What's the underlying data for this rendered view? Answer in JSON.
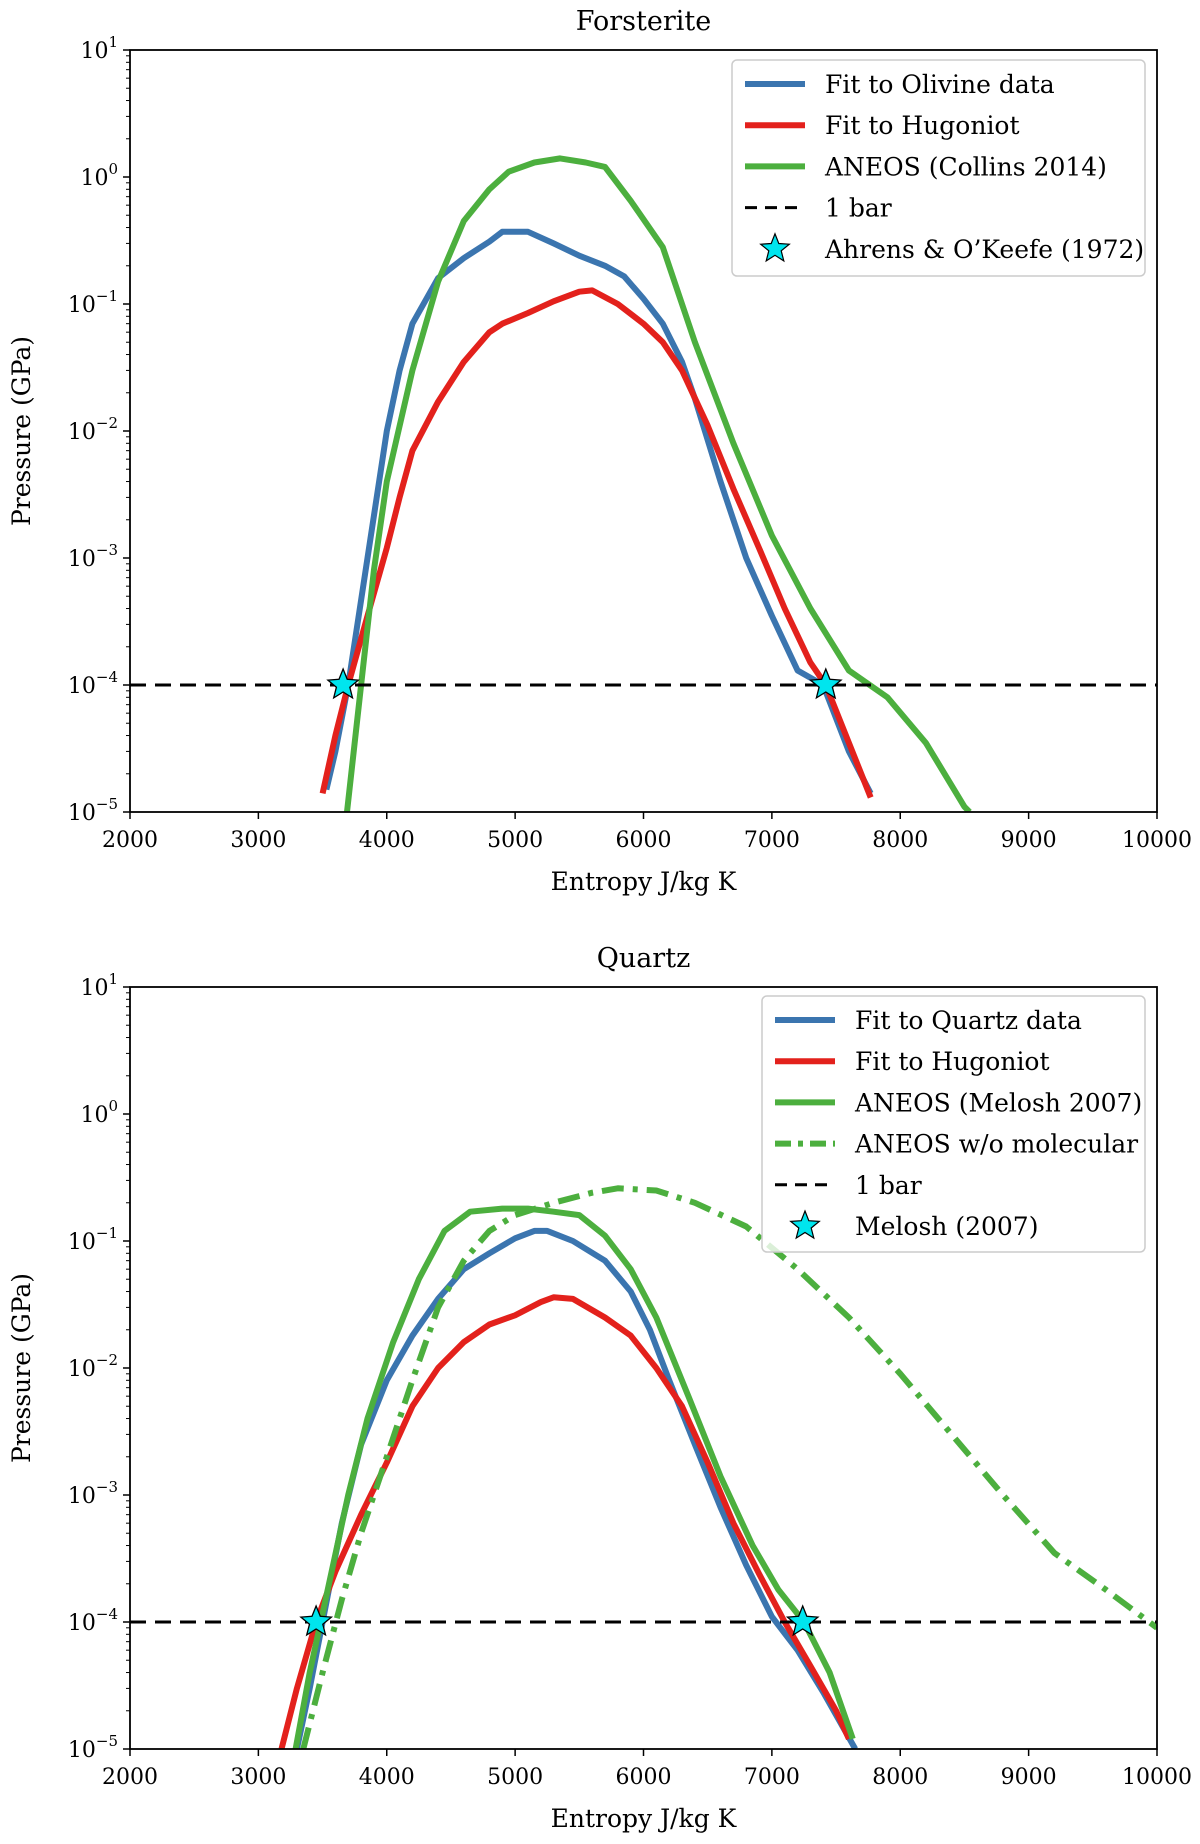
{
  "chart_data": [
    {
      "type": "line",
      "title": "Forsterite",
      "xlabel": "Entropy J/kg K",
      "ylabel": "Pressure (GPa)",
      "xlim": [
        2000,
        10000
      ],
      "ylim": [
        1e-05,
        10
      ],
      "yscale": "log",
      "x_ticks": [
        2000,
        3000,
        4000,
        5000,
        6000,
        7000,
        8000,
        9000,
        10000
      ],
      "y_ticks": [
        {
          "base": "10",
          "exp": "1",
          "value": 10
        },
        {
          "base": "10",
          "exp": "0",
          "value": 1
        },
        {
          "base": "10",
          "exp": "−1",
          "value": 0.1
        },
        {
          "base": "10",
          "exp": "−2",
          "value": 0.01
        },
        {
          "base": "10",
          "exp": "−3",
          "value": 0.001
        },
        {
          "base": "10",
          "exp": "−4",
          "value": 0.0001
        },
        {
          "base": "10",
          "exp": "−5",
          "value": 1e-05
        }
      ],
      "legend_position": "top-right",
      "series": [
        {
          "name": "Fit to Olivine data",
          "color": "#3b75af",
          "style": "solid",
          "x": [
            3530,
            3600,
            3700,
            3850,
            4000,
            4100,
            4200,
            4400,
            4600,
            4800,
            4900,
            5100,
            5300,
            5500,
            5700,
            5850,
            6000,
            6150,
            6300,
            6400,
            6600,
            6800,
            7000,
            7200,
            7400,
            7600,
            7770
          ],
          "y": [
            1.5e-05,
            3e-05,
            0.0001,
            0.001,
            0.01,
            0.03,
            0.07,
            0.16,
            0.23,
            0.31,
            0.37,
            0.37,
            0.3,
            0.24,
            0.2,
            0.165,
            0.11,
            0.07,
            0.035,
            0.018,
            0.004,
            0.001,
            0.00035,
            0.00013,
            0.0001,
            3e-05,
            1.4e-05
          ]
        },
        {
          "name": "Fit to Hugoniot",
          "color": "#e3211c",
          "style": "solid",
          "x": [
            3500,
            3600,
            3700,
            3850,
            4000,
            4100,
            4200,
            4400,
            4600,
            4800,
            4900,
            5100,
            5300,
            5500,
            5600,
            5800,
            6000,
            6150,
            6300,
            6500,
            6700,
            6900,
            7100,
            7300,
            7420,
            7600,
            7770
          ],
          "y": [
            1.4e-05,
            4e-05,
            0.0001,
            0.00035,
            0.0012,
            0.003,
            0.007,
            0.017,
            0.035,
            0.06,
            0.07,
            0.085,
            0.105,
            0.125,
            0.128,
            0.1,
            0.07,
            0.05,
            0.03,
            0.011,
            0.0035,
            0.0012,
            0.0004,
            0.00015,
            0.0001,
            3.5e-05,
            1.3e-05
          ]
        },
        {
          "name": "ANEOS (Collins 2014)",
          "color": "#4caf3e",
          "style": "solid",
          "x": [
            3690,
            3800,
            3900,
            4000,
            4200,
            4400,
            4600,
            4800,
            4950,
            5150,
            5350,
            5550,
            5700,
            5900,
            6150,
            6400,
            6700,
            7000,
            7300,
            7600,
            7900,
            8200,
            8500,
            8540
          ],
          "y": [
            1e-05,
            0.0001,
            0.0008,
            0.004,
            0.03,
            0.15,
            0.45,
            0.8,
            1.1,
            1.3,
            1.4,
            1.3,
            1.2,
            0.65,
            0.28,
            0.05,
            0.008,
            0.0015,
            0.0004,
            0.00013,
            8e-05,
            3.5e-05,
            1.1e-05,
            1e-05
          ]
        }
      ],
      "hline": {
        "name": "1 bar",
        "y": 0.0001,
        "color": "#000000",
        "style": "dashed"
      },
      "markers": {
        "name": "Ahrens & O’Keefe (1972)",
        "color": "#00e5ee",
        "x": [
          3660,
          7420
        ],
        "y": [
          0.0001,
          0.0001
        ]
      }
    },
    {
      "type": "line",
      "title": "Quartz",
      "xlabel": "Entropy J/kg K",
      "ylabel": "Pressure (GPa)",
      "xlim": [
        2000,
        10000
      ],
      "ylim": [
        1e-05,
        10
      ],
      "yscale": "log",
      "x_ticks": [
        2000,
        3000,
        4000,
        5000,
        6000,
        7000,
        8000,
        9000,
        10000
      ],
      "y_ticks": [
        {
          "base": "10",
          "exp": "1",
          "value": 10
        },
        {
          "base": "10",
          "exp": "0",
          "value": 1
        },
        {
          "base": "10",
          "exp": "−1",
          "value": 0.1
        },
        {
          "base": "10",
          "exp": "−2",
          "value": 0.01
        },
        {
          "base": "10",
          "exp": "−3",
          "value": 0.001
        },
        {
          "base": "10",
          "exp": "−4",
          "value": 0.0001
        },
        {
          "base": "10",
          "exp": "−5",
          "value": 1e-05
        }
      ],
      "legend_position": "top-right",
      "series": [
        {
          "name": "Fit to Quartz data",
          "color": "#3b75af",
          "style": "solid",
          "x": [
            3300,
            3400,
            3500,
            3650,
            3800,
            4000,
            4200,
            4400,
            4600,
            4800,
            5000,
            5150,
            5250,
            5450,
            5700,
            5900,
            6050,
            6200,
            6400,
            6600,
            6800,
            7000,
            7200,
            7400,
            7650
          ],
          "y": [
            1e-05,
            3e-05,
            0.0001,
            0.0006,
            0.0025,
            0.008,
            0.018,
            0.035,
            0.06,
            0.08,
            0.105,
            0.12,
            0.12,
            0.1,
            0.07,
            0.04,
            0.02,
            0.008,
            0.0025,
            0.0008,
            0.00028,
            0.00011,
            6e-05,
            2.8e-05,
            1e-05
          ]
        },
        {
          "name": "Fit to Hugoniot",
          "color": "#e3211c",
          "style": "solid",
          "x": [
            3180,
            3300,
            3450,
            3600,
            3800,
            4000,
            4200,
            4400,
            4600,
            4800,
            5000,
            5200,
            5300,
            5450,
            5700,
            5900,
            6100,
            6300,
            6500,
            6700,
            6900,
            7100,
            7300,
            7500,
            7600
          ],
          "y": [
            1e-05,
            3e-05,
            0.0001,
            0.00025,
            0.0007,
            0.0018,
            0.005,
            0.01,
            0.016,
            0.022,
            0.026,
            0.033,
            0.036,
            0.035,
            0.025,
            0.018,
            0.01,
            0.005,
            0.0018,
            0.0006,
            0.00024,
            0.0001,
            4.5e-05,
            2e-05,
            1.2e-05
          ]
        },
        {
          "name": "ANEOS (Melosh 2007)",
          "color": "#4caf3e",
          "style": "solid",
          "x": [
            3290,
            3400,
            3550,
            3700,
            3850,
            4050,
            4250,
            4450,
            4650,
            4900,
            5100,
            5300,
            5500,
            5700,
            5900,
            6100,
            6350,
            6600,
            6850,
            7050,
            7250,
            7450,
            7630
          ],
          "y": [
            1e-05,
            4e-05,
            0.0002,
            0.001,
            0.004,
            0.016,
            0.05,
            0.12,
            0.17,
            0.18,
            0.18,
            0.17,
            0.16,
            0.11,
            0.06,
            0.025,
            0.006,
            0.0014,
            0.0004,
            0.00018,
            0.0001,
            4e-05,
            1.2e-05
          ]
        },
        {
          "name": "ANEOS w/o molecular",
          "color": "#4caf3e",
          "style": "dashdot",
          "x": [
            3350,
            3500,
            3650,
            3800,
            4000,
            4200,
            4400,
            4600,
            4800,
            5000,
            5300,
            5600,
            5800,
            6100,
            6400,
            6800,
            7200,
            7600,
            8000,
            8400,
            8800,
            9200,
            9600,
            10000
          ],
          "y": [
            1e-05,
            4e-05,
            0.00015,
            0.0005,
            0.002,
            0.008,
            0.03,
            0.07,
            0.12,
            0.16,
            0.2,
            0.24,
            0.26,
            0.25,
            0.2,
            0.13,
            0.06,
            0.025,
            0.009,
            0.003,
            0.001,
            0.00035,
            0.00018,
            9e-05
          ]
        }
      ],
      "hline": {
        "name": "1 bar",
        "y": 0.0001,
        "color": "#000000",
        "style": "dashed"
      },
      "markers": {
        "name": "Melosh (2007)",
        "color": "#00e5ee",
        "x": [
          3450,
          7240
        ],
        "y": [
          0.0001,
          0.0001
        ]
      }
    }
  ]
}
